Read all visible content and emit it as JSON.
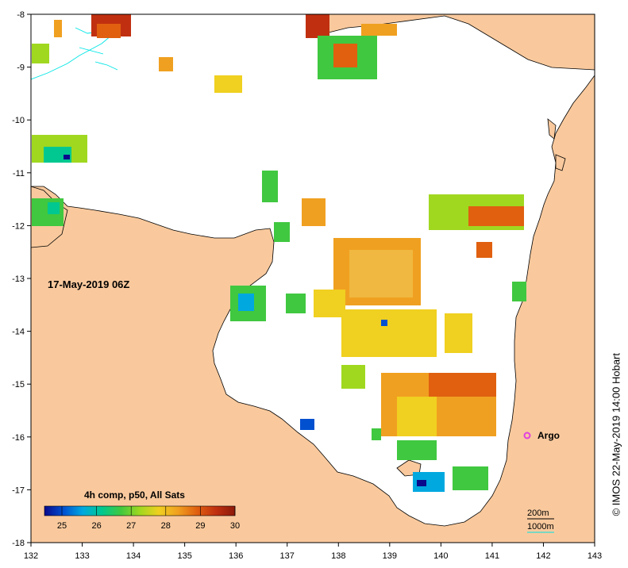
{
  "map": {
    "timestamp": "17-May-2019 06Z",
    "credit": "© IMOS 22-May-2019 14:00 Hobart",
    "colorbar": {
      "title": "4h comp, p50, All Sats",
      "ticks": [
        "25",
        "26",
        "27",
        "28",
        "29",
        "30"
      ],
      "colors": [
        "#0a0a8c",
        "#0050d0",
        "#00a8e0",
        "#00c890",
        "#40c840",
        "#a0d820",
        "#f0d020",
        "#f0a020",
        "#e06010",
        "#c03010",
        "#8c1a0a"
      ]
    },
    "depth_legend": {
      "c200": "200m",
      "c1000": "1000m"
    },
    "argo": {
      "label": "Argo",
      "color": "#e040e0"
    },
    "x_ticks": [
      "132",
      "133",
      "134",
      "135",
      "136",
      "137",
      "138",
      "139",
      "140",
      "141",
      "142",
      "143"
    ],
    "y_ticks": [
      "-8",
      "-9",
      "-10",
      "-11",
      "-12",
      "-13",
      "-14",
      "-15",
      "-16",
      "-17",
      "-18"
    ],
    "colors": {
      "land": "#f9c99d",
      "sea": "#ffffff",
      "coast": "#000000",
      "shelf": "#00e5e5"
    }
  }
}
